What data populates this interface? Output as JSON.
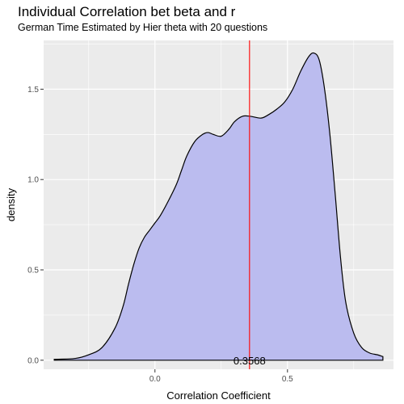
{
  "chart_data": {
    "type": "area",
    "title": "Individual Correlation bet beta and r",
    "subtitle": "German Time Estimated by Hier theta with 20 questions",
    "xlabel": "Correlation Coefficient",
    "ylabel": "density",
    "xlim": [
      -0.42,
      0.9
    ],
    "ylim": [
      -0.05,
      1.77
    ],
    "x_ticks": [
      0.0,
      0.5
    ],
    "x_tick_labels": [
      "0.0",
      "0.5"
    ],
    "y_ticks": [
      0.0,
      0.5,
      1.0,
      1.5
    ],
    "y_tick_labels": [
      "0.0",
      "0.5",
      "1.0",
      "1.5"
    ],
    "grid": true,
    "fill_color": "#bbbcef",
    "line_color": "#000000",
    "panel_color": "#ebebeb",
    "vline": {
      "x": 0.3568,
      "color": "#ff0000"
    },
    "annotation": {
      "text": "0.3568",
      "x": 0.3568,
      "y": 0.0
    },
    "x": [
      -0.38,
      -0.3,
      -0.25,
      -0.2,
      -0.15,
      -0.12,
      -0.1,
      -0.08,
      -0.06,
      -0.04,
      -0.02,
      0.0,
      0.02,
      0.05,
      0.08,
      0.1,
      0.12,
      0.15,
      0.18,
      0.2,
      0.22,
      0.25,
      0.28,
      0.3,
      0.33,
      0.36,
      0.4,
      0.43,
      0.46,
      0.49,
      0.52,
      0.55,
      0.58,
      0.6,
      0.62,
      0.64,
      0.66,
      0.68,
      0.7,
      0.72,
      0.75,
      0.78,
      0.81,
      0.84,
      0.86
    ],
    "y": [
      0.005,
      0.01,
      0.03,
      0.07,
      0.18,
      0.3,
      0.42,
      0.53,
      0.62,
      0.68,
      0.72,
      0.76,
      0.8,
      0.88,
      0.97,
      1.05,
      1.13,
      1.21,
      1.25,
      1.26,
      1.25,
      1.24,
      1.28,
      1.32,
      1.35,
      1.35,
      1.34,
      1.36,
      1.39,
      1.43,
      1.5,
      1.6,
      1.68,
      1.7,
      1.66,
      1.5,
      1.25,
      0.92,
      0.57,
      0.32,
      0.15,
      0.07,
      0.04,
      0.03,
      0.02
    ]
  }
}
